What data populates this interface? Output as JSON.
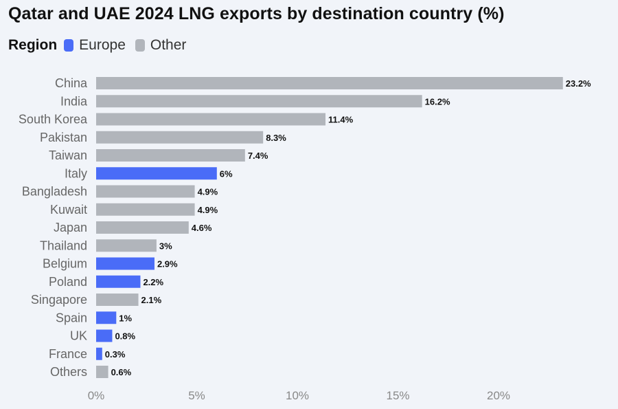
{
  "chart_data": {
    "type": "bar",
    "orientation": "horizontal",
    "title": "Qatar and UAE 2024 LNG exports by destination country (%)",
    "legend": {
      "title": "Region",
      "placement": "top-left",
      "entries": [
        {
          "name": "Europe",
          "color": "#4a6cf7"
        },
        {
          "name": "Other",
          "color": "#b1b5bb"
        }
      ]
    },
    "categories": [
      "China",
      "India",
      "South Korea",
      "Pakistan",
      "Taiwan",
      "Italy",
      "Bangladesh",
      "Kuwait",
      "Japan",
      "Thailand",
      "Belgium",
      "Poland",
      "Singapore",
      "Spain",
      "UK",
      "France",
      "Others"
    ],
    "values": [
      23.2,
      16.2,
      11.4,
      8.3,
      7.4,
      6,
      4.9,
      4.9,
      4.6,
      3,
      2.9,
      2.2,
      2.1,
      1,
      0.8,
      0.3,
      0.6
    ],
    "value_labels": [
      "23.2%",
      "16.2%",
      "11.4%",
      "8.3%",
      "7.4%",
      "6%",
      "4.9%",
      "4.9%",
      "4.6%",
      "3%",
      "2.9%",
      "2.2%",
      "2.1%",
      "1%",
      "0.8%",
      "0.3%",
      "0.6%"
    ],
    "regions": [
      "Other",
      "Other",
      "Other",
      "Other",
      "Other",
      "Europe",
      "Other",
      "Other",
      "Other",
      "Other",
      "Europe",
      "Europe",
      "Other",
      "Europe",
      "Europe",
      "Europe",
      "Other"
    ],
    "xlim": [
      0,
      24.5
    ],
    "xticks": [
      0,
      5,
      10,
      15,
      20
    ],
    "xtick_labels": [
      "0%",
      "5%",
      "10%",
      "15%",
      "20%"
    ],
    "grid": false
  }
}
